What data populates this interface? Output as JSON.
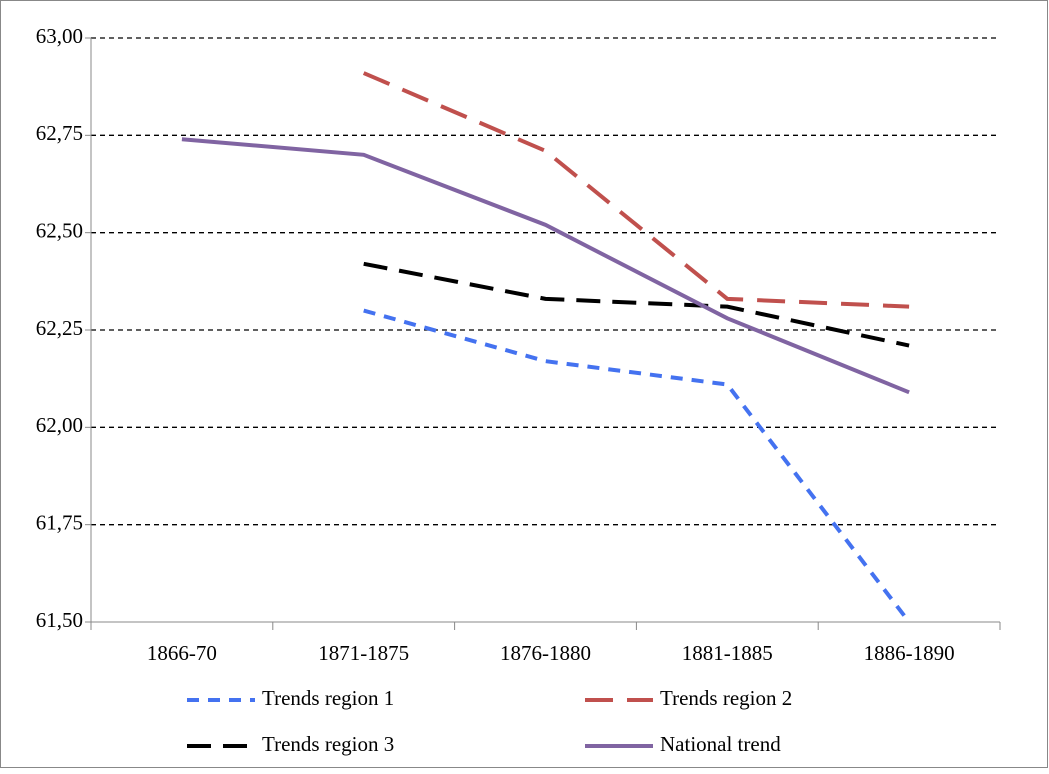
{
  "chart_data": {
    "type": "line",
    "categories": [
      "1866-70",
      "1871-1875",
      "1876-1880",
      "1881-1885",
      "1886-1890"
    ],
    "series": [
      {
        "name": "Trends region 1",
        "color": "#4472f0",
        "values": [
          null,
          62.3,
          62.17,
          62.11,
          61.5
        ]
      },
      {
        "name": "Trends region 2",
        "color": "#c0504d",
        "values": [
          null,
          62.91,
          62.71,
          62.33,
          62.31
        ]
      },
      {
        "name": "Trends region 3",
        "color": "#000000",
        "values": [
          null,
          62.42,
          62.33,
          62.31,
          62.21
        ]
      },
      {
        "name": "National trend",
        "color": "#8064a2",
        "values": [
          62.74,
          62.7,
          62.52,
          62.28,
          62.09
        ]
      }
    ],
    "ylim": [
      61.5,
      63
    ],
    "yticks": [
      {
        "value": 61.5,
        "label": "61,50"
      },
      {
        "value": 61.75,
        "label": "61,75"
      },
      {
        "value": 62,
        "label": "62,00"
      },
      {
        "value": 62.25,
        "label": "62,25"
      },
      {
        "value": 62.5,
        "label": "62,50"
      },
      {
        "value": 62.75,
        "label": "62,75"
      },
      {
        "value": 63,
        "label": "63,00"
      }
    ],
    "grid": true,
    "legend": "bottom"
  }
}
